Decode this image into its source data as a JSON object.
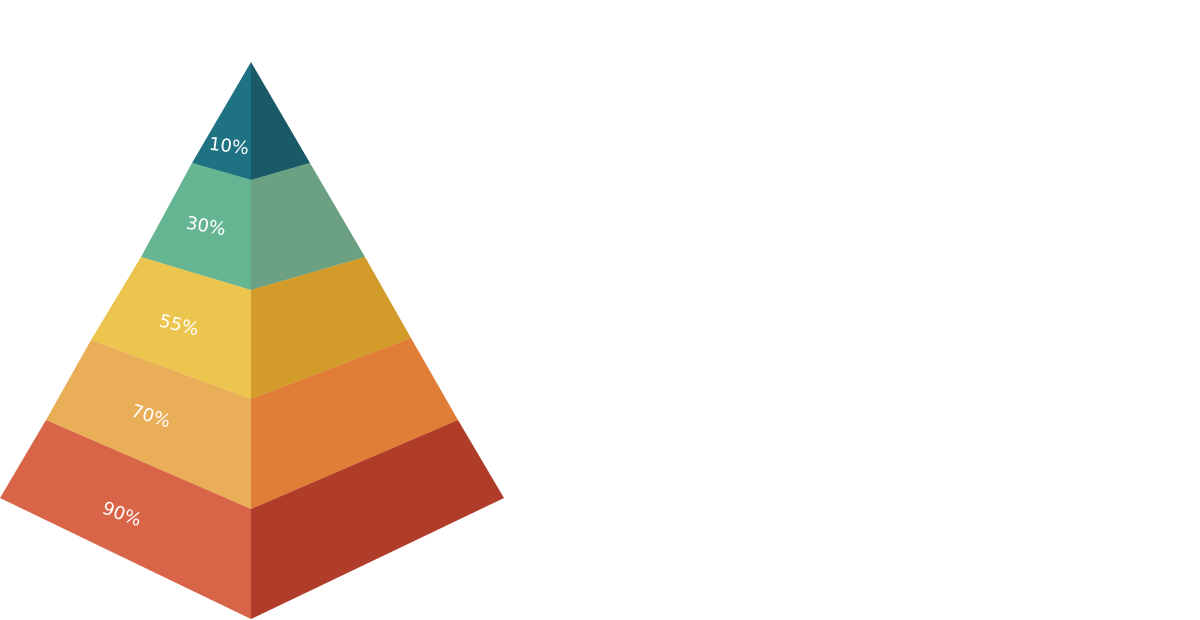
{
  "pyramid": {
    "layers": [
      {
        "label": "10%",
        "value": 10,
        "left_color": "#1f7282",
        "right_color": "#1a5a66"
      },
      {
        "label": "30%",
        "value": 30,
        "left_color": "#66b592",
        "right_color": "#6ba083"
      },
      {
        "label": "55%",
        "value": 55,
        "left_color": "#ebc54d",
        "right_color": "#d39b29"
      },
      {
        "label": "70%",
        "value": 70,
        "left_color": "#eaae59",
        "right_color": "#e07d36"
      },
      {
        "label": "90%",
        "value": 90,
        "left_color": "#d96549",
        "right_color": "#b03c2a"
      }
    ]
  }
}
